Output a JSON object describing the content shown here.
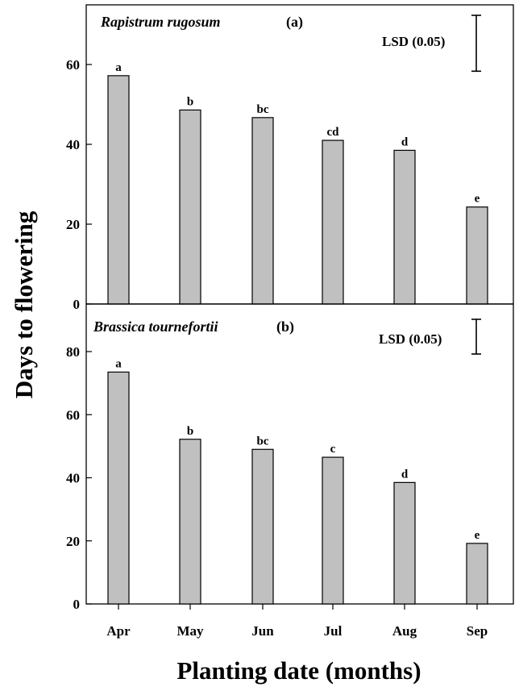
{
  "chart_data": {
    "type": "bar",
    "xlabel": "Planting date (months)",
    "ylabel": "Days to flowering",
    "categories": [
      "Apr",
      "May",
      "Jun",
      "Jul",
      "Aug",
      "Sep"
    ],
    "panels": [
      {
        "species": "Rapistrum rugosum",
        "tag": "(a)",
        "ylim": [
          0,
          72
        ],
        "yticks": [
          "0",
          "20",
          "40",
          "60"
        ],
        "values": [
          57.2,
          48.6,
          46.7,
          41.0,
          38.5,
          24.3
        ],
        "letters": [
          "a",
          "b",
          "bc",
          "cd",
          "d",
          "e"
        ],
        "lsd_label": "LSD (0.05)",
        "lsd_value": 14
      },
      {
        "species": "Brassica tournefortii",
        "tag": "(b)",
        "ylim": [
          0,
          95
        ],
        "yticks": [
          "0",
          "20",
          "40",
          "60",
          "80"
        ],
        "values": [
          73.5,
          52.2,
          49.0,
          46.5,
          38.5,
          19.2
        ],
        "letters": [
          "a",
          "b",
          "bc",
          "c",
          "d",
          "e"
        ],
        "lsd_label": "LSD (0.05)",
        "lsd_value": 11
      }
    ]
  }
}
